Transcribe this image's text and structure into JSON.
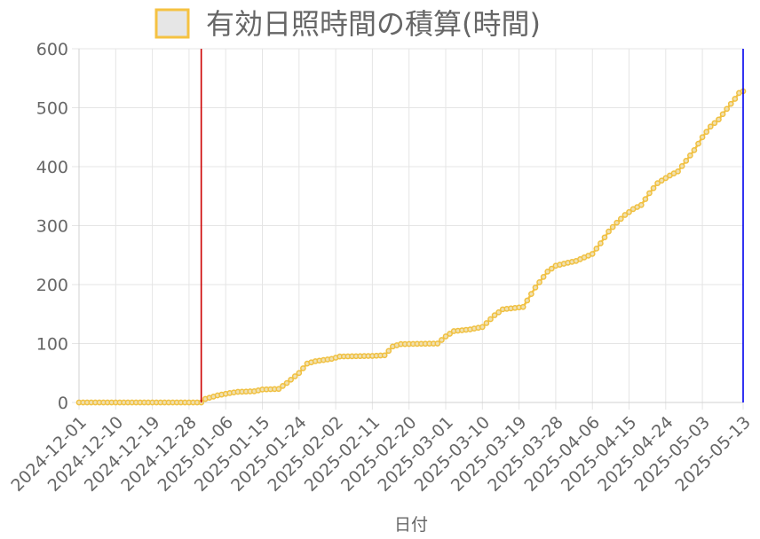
{
  "chart_data": {
    "type": "line",
    "title": "",
    "xlabel": "日付",
    "ylabel": "",
    "ylim": [
      0,
      600
    ],
    "yticks": [
      0,
      100,
      200,
      300,
      400,
      500,
      600
    ],
    "xlim": [
      "2024-12-01",
      "2025-05-13"
    ],
    "xticks": [
      "2024-12-01",
      "2024-12-10",
      "2024-12-19",
      "2024-12-28",
      "2025-01-06",
      "2025-01-15",
      "2025-01-24",
      "2025-02-02",
      "2025-02-11",
      "2025-02-20",
      "2025-03-01",
      "2025-03-10",
      "2025-03-19",
      "2025-03-28",
      "2025-04-06",
      "2025-04-15",
      "2025-04-24",
      "2025-05-03",
      "2025-05-13"
    ],
    "grid": true,
    "legend": {
      "position": "top",
      "entries": [
        "有効日照時間の積算(時間)"
      ]
    },
    "series": [
      {
        "name": "有効日照時間の積算(時間)",
        "color": "#f5c242",
        "points": [
          [
            "2024-12-01",
            0
          ],
          [
            "2024-12-31",
            0
          ],
          [
            "2025-01-01",
            6
          ],
          [
            "2025-01-04",
            12
          ],
          [
            "2025-01-07",
            16
          ],
          [
            "2025-01-09",
            18
          ],
          [
            "2025-01-13",
            19
          ],
          [
            "2025-01-15",
            22
          ],
          [
            "2025-01-19",
            23
          ],
          [
            "2025-01-21",
            33
          ],
          [
            "2025-01-24",
            50
          ],
          [
            "2025-01-26",
            66
          ],
          [
            "2025-01-28",
            70
          ],
          [
            "2025-02-01",
            74
          ],
          [
            "2025-02-03",
            78
          ],
          [
            "2025-02-11",
            79
          ],
          [
            "2025-02-14",
            80
          ],
          [
            "2025-02-16",
            95
          ],
          [
            "2025-02-18",
            99
          ],
          [
            "2025-02-27",
            100
          ],
          [
            "2025-03-01",
            112
          ],
          [
            "2025-03-03",
            121
          ],
          [
            "2025-03-07",
            124
          ],
          [
            "2025-03-10",
            128
          ],
          [
            "2025-03-13",
            148
          ],
          [
            "2025-03-15",
            158
          ],
          [
            "2025-03-20",
            162
          ],
          [
            "2025-03-23",
            195
          ],
          [
            "2025-03-26",
            222
          ],
          [
            "2025-03-28",
            232
          ],
          [
            "2025-03-31",
            237
          ],
          [
            "2025-04-02",
            240
          ],
          [
            "2025-04-04",
            246
          ],
          [
            "2025-04-06",
            252
          ],
          [
            "2025-04-08",
            270
          ],
          [
            "2025-04-10",
            290
          ],
          [
            "2025-04-12",
            305
          ],
          [
            "2025-04-14",
            318
          ],
          [
            "2025-04-16",
            328
          ],
          [
            "2025-04-18",
            335
          ],
          [
            "2025-04-20",
            355
          ],
          [
            "2025-04-22",
            372
          ],
          [
            "2025-04-25",
            385
          ],
          [
            "2025-04-27",
            392
          ],
          [
            "2025-04-29",
            410
          ],
          [
            "2025-05-01",
            428
          ],
          [
            "2025-05-03",
            450
          ],
          [
            "2025-05-05",
            468
          ],
          [
            "2025-05-07",
            480
          ],
          [
            "2025-05-09",
            498
          ],
          [
            "2025-05-11",
            515
          ],
          [
            "2025-05-12",
            525
          ],
          [
            "2025-05-13",
            528
          ]
        ]
      }
    ],
    "annotations": [
      {
        "type": "vertical-line",
        "x": "2024-12-31",
        "color": "#cc0000"
      },
      {
        "type": "vertical-line",
        "x": "2025-05-13",
        "color": "#0000ee"
      }
    ]
  }
}
